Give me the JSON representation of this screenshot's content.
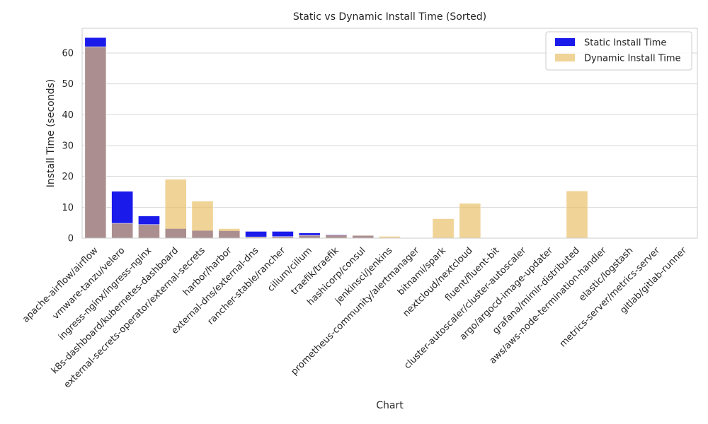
{
  "chart_data": {
    "type": "bar",
    "title": "Static vs Dynamic Install Time (Sorted)",
    "xlabel": "Chart",
    "ylabel": "Install Time (seconds)",
    "ylim": [
      0,
      68
    ],
    "yticks": [
      0,
      10,
      20,
      30,
      40,
      50,
      60
    ],
    "grid": true,
    "legend_position": "top-right",
    "categories": [
      "apache-airflow/airflow",
      "vmware-tanzu/velero",
      "ingress-nginx/ingress-nginx",
      "k8s-dashboard/kubernetes-dashboard",
      "external-secrets-operator/external-secrets",
      "harbor/harbor",
      "external-dns/external-dns",
      "rancher-stable/rancher",
      "cilium/cilium",
      "traefik/traefik",
      "hashicorp/consul",
      "jenkinsci/jenkins",
      "prometheus-community/alertmanager",
      "bitnami/spark",
      "nextcloud/nextcloud",
      "fluent/fluent-bit",
      "cluster-autoscaler/cluster-autoscaler",
      "argo/argocd-image-updater",
      "grafana/mimir-distributed",
      "aws/aws-node-termination-handler",
      "elastic/logstash",
      "metrics-server/metrics-server",
      "gitlab/gitlab-runner"
    ],
    "series": [
      {
        "name": "Static Install Time",
        "color": "#1a1aeb",
        "values": [
          65,
          15.2,
          7.2,
          3.1,
          2.5,
          2.4,
          2.2,
          2.2,
          1.7,
          1.2,
          0.9,
          0.1,
          0,
          0,
          0,
          0,
          0,
          0,
          0,
          0,
          0,
          0,
          0
        ]
      },
      {
        "name": "Dynamic Install Time",
        "color": "#e9c06a",
        "values": [
          62,
          4.8,
          4.4,
          19.1,
          12,
          3.1,
          0.4,
          0.5,
          0.9,
          1,
          0.9,
          0.6,
          0,
          6.3,
          11.3,
          0.1,
          0,
          0.1,
          15.3,
          0,
          0,
          0,
          0
        ]
      }
    ]
  }
}
